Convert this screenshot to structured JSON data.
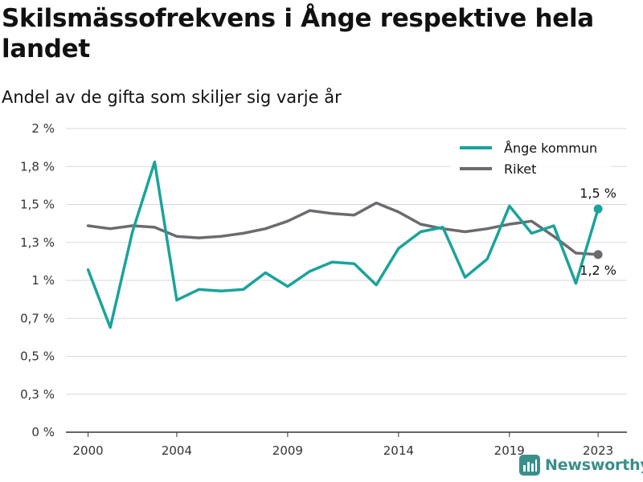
{
  "title": "Skilsmässofrekvens i Ånge respektive hela landet",
  "subtitle": "Andel av de gifta som skiljer sig varje år",
  "brand": {
    "name": "Newsworthy",
    "color": "#3b8f8a"
  },
  "colors": {
    "ange": "#1aa39a",
    "riket": "#6c6a6e",
    "grid": "#d9d9d9"
  },
  "chart_data": {
    "type": "line",
    "x": [
      2000,
      2001,
      2002,
      2003,
      2004,
      2005,
      2006,
      2007,
      2008,
      2009,
      2010,
      2011,
      2012,
      2013,
      2014,
      2015,
      2016,
      2017,
      2018,
      2019,
      2020,
      2021,
      2022,
      2023
    ],
    "series": [
      {
        "name": "Ånge kommun",
        "color": "#1aa39a",
        "values": [
          1.07,
          0.69,
          1.32,
          1.78,
          0.87,
          0.94,
          0.93,
          0.94,
          1.05,
          0.96,
          1.06,
          1.12,
          1.11,
          0.97,
          1.21,
          1.32,
          1.35,
          1.02,
          1.14,
          1.49,
          1.31,
          1.36,
          0.98,
          1.47
        ]
      },
      {
        "name": "Riket",
        "color": "#6c6a6e",
        "values": [
          1.36,
          1.34,
          1.36,
          1.35,
          1.29,
          1.28,
          1.29,
          1.31,
          1.34,
          1.39,
          1.46,
          1.44,
          1.43,
          1.51,
          1.45,
          1.37,
          1.34,
          1.32,
          1.34,
          1.37,
          1.39,
          1.29,
          1.18,
          1.17
        ]
      }
    ],
    "end_labels": [
      "1,5 %",
      "1,2 %"
    ],
    "yticks": [
      {
        "value": 0,
        "label": "0 %"
      },
      {
        "value": 0.25,
        "label": "0,3 %"
      },
      {
        "value": 0.5,
        "label": "0,5 %"
      },
      {
        "value": 0.75,
        "label": "0,7 %"
      },
      {
        "value": 1.0,
        "label": "1 %"
      },
      {
        "value": 1.25,
        "label": "1,3 %"
      },
      {
        "value": 1.5,
        "label": "1,5 %"
      },
      {
        "value": 1.75,
        "label": "1,8 %"
      },
      {
        "value": 2.0,
        "label": "2 %"
      }
    ],
    "xticks": [
      {
        "value": 2000,
        "label": "2000"
      },
      {
        "value": 2004,
        "label": "2004"
      },
      {
        "value": 2009,
        "label": "2009"
      },
      {
        "value": 2014,
        "label": "2014"
      },
      {
        "value": 2019,
        "label": "2019"
      },
      {
        "value": 2023,
        "label": "2023"
      }
    ],
    "ylim": [
      0,
      2
    ],
    "xlim": [
      1999,
      2024.3
    ],
    "grid": "horizontal",
    "legend": "top-right"
  }
}
